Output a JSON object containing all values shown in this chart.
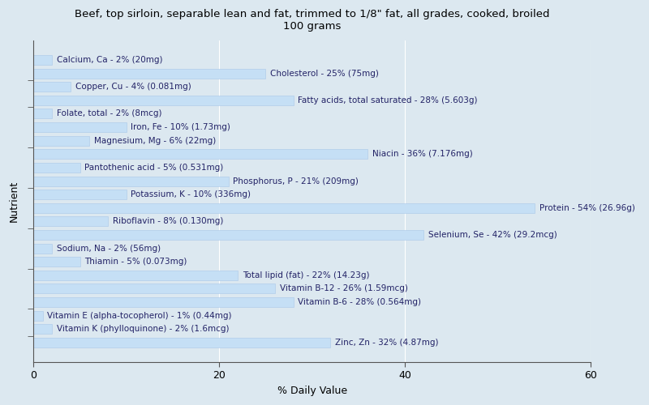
{
  "title": "Beef, top sirloin, separable lean and fat, trimmed to 1/8\" fat, all grades, cooked, broiled\n100 grams",
  "xlabel": "% Daily Value",
  "ylabel": "Nutrient",
  "background_color": "#dce8f0",
  "plot_bg_color": "#dce8f0",
  "bar_color": "#c5dff5",
  "bar_edge_color": "#aac8e8",
  "text_color": "#222266",
  "xlim": [
    0,
    60
  ],
  "xticks": [
    0,
    20,
    40,
    60
  ],
  "title_fontsize": 9.5,
  "label_fontsize": 7.5,
  "nutrients": [
    {
      "label": "Calcium, Ca - 2% (20mg)",
      "value": 2
    },
    {
      "label": "Cholesterol - 25% (75mg)",
      "value": 25
    },
    {
      "label": "Copper, Cu - 4% (0.081mg)",
      "value": 4
    },
    {
      "label": "Fatty acids, total saturated - 28% (5.603g)",
      "value": 28
    },
    {
      "label": "Folate, total - 2% (8mcg)",
      "value": 2
    },
    {
      "label": "Iron, Fe - 10% (1.73mg)",
      "value": 10
    },
    {
      "label": "Magnesium, Mg - 6% (22mg)",
      "value": 6
    },
    {
      "label": "Niacin - 36% (7.176mg)",
      "value": 36
    },
    {
      "label": "Pantothenic acid - 5% (0.531mg)",
      "value": 5
    },
    {
      "label": "Phosphorus, P - 21% (209mg)",
      "value": 21
    },
    {
      "label": "Potassium, K - 10% (336mg)",
      "value": 10
    },
    {
      "label": "Protein - 54% (26.96g)",
      "value": 54
    },
    {
      "label": "Riboflavin - 8% (0.130mg)",
      "value": 8
    },
    {
      "label": "Selenium, Se - 42% (29.2mcg)",
      "value": 42
    },
    {
      "label": "Sodium, Na - 2% (56mg)",
      "value": 2
    },
    {
      "label": "Thiamin - 5% (0.073mg)",
      "value": 5
    },
    {
      "label": "Total lipid (fat) - 22% (14.23g)",
      "value": 22
    },
    {
      "label": "Vitamin B-12 - 26% (1.59mcg)",
      "value": 26
    },
    {
      "label": "Vitamin B-6 - 28% (0.564mg)",
      "value": 28
    },
    {
      "label": "Vitamin E (alpha-tocopherol) - 1% (0.44mg)",
      "value": 1
    },
    {
      "label": "Vitamin K (phylloquinone) - 2% (1.6mcg)",
      "value": 2
    },
    {
      "label": "Zinc, Zn - 32% (4.87mg)",
      "value": 32
    }
  ],
  "tick_groups": [
    1.5,
    3.5,
    6.5,
    9.5,
    12.5,
    15.5,
    18.5,
    20.5
  ]
}
